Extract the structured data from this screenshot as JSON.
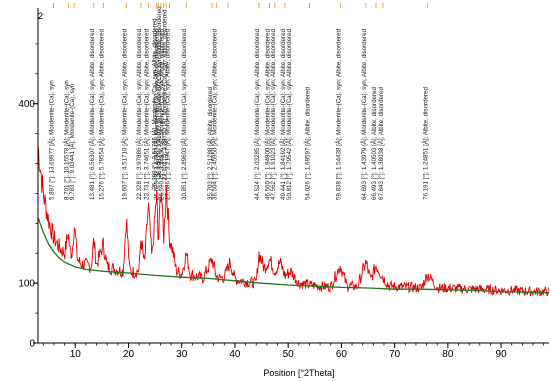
{
  "panel_number": "2",
  "chart_data": {
    "type": "line",
    "title": "",
    "xlabel": "Position [°2Theta]",
    "ylabel": "",
    "xlim": [
      3,
      99
    ],
    "ylim": [
      0,
      560
    ],
    "x_ticks": [
      10,
      20,
      30,
      40,
      50,
      60,
      70,
      80,
      90
    ],
    "y_ticks": [
      0,
      100,
      400
    ],
    "grid": false,
    "legend": "none",
    "colors": {
      "observed": "#e00000",
      "background": "#1f7a1f",
      "marker": "#f29b30",
      "axis": "#000000"
    },
    "series": [
      {
        "role": "observed",
        "x": [
          3,
          4,
          5,
          6,
          7,
          8,
          8.7,
          9.0,
          9.4,
          9.8,
          10.4,
          11,
          12,
          13,
          13.48,
          14,
          15.28,
          16,
          17,
          18,
          19,
          19.6,
          20.2,
          21,
          22,
          22.33,
          23.0,
          23.73,
          24.4,
          25.3,
          25.6,
          26.1,
          26.6,
          27.1,
          27.7,
          28.3,
          29,
          30,
          30.85,
          31.6,
          32.5,
          34,
          35.7,
          36.5,
          37,
          38,
          39.1,
          40,
          42,
          44,
          44.5,
          45.5,
          46.5,
          47.5,
          48.5,
          49.4,
          50.5,
          52,
          54,
          56,
          58,
          59.8,
          61,
          63,
          64.6,
          65.5,
          66.5,
          67.8,
          69,
          71,
          73,
          75,
          76.2,
          78,
          80,
          82,
          84,
          86,
          88,
          90,
          92,
          94,
          96,
          98,
          99
        ],
        "y": [
          330,
          250,
          205,
          175,
          160,
          150,
          185,
          155,
          150,
          200,
          140,
          133,
          130,
          128,
          172,
          130,
          165,
          128,
          125,
          122,
          120,
          210,
          122,
          118,
          122,
          175,
          130,
          230,
          140,
          250,
          160,
          270,
          170,
          265,
          175,
          155,
          120,
          115,
          150,
          115,
          112,
          108,
          140,
          112,
          108,
          110,
          135,
          107,
          103,
          100,
          150,
          125,
          140,
          120,
          135,
          112,
          120,
          100,
          97,
          95,
          94,
          130,
          96,
          94,
          135,
          105,
          130,
          110,
          95,
          94,
          93,
          92,
          115,
          92,
          92,
          91,
          90,
          90,
          89,
          88,
          88,
          87,
          86,
          86,
          86
        ]
      },
      {
        "role": "background",
        "x": [
          3,
          4,
          5,
          6,
          7,
          8,
          10,
          12,
          15,
          20,
          25,
          30,
          35,
          40,
          45,
          50,
          55,
          60,
          65,
          70,
          75,
          80,
          85,
          90,
          95,
          99
        ],
        "y": [
          210,
          185,
          165,
          152,
          142,
          135,
          127,
          123,
          120,
          117,
          113,
          110,
          108,
          104,
          100,
          97,
          95,
          93,
          92,
          90,
          90,
          89,
          88,
          86,
          85,
          84
        ]
      }
    ],
    "peak_markers": [
      5.9,
      8.7,
      9.8,
      13.48,
      15.28,
      19.6,
      22.33,
      23.73,
      25.3,
      25.6,
      26.1,
      26.6,
      27.1,
      27.7,
      30.85,
      35.7,
      36.5,
      38.7,
      44.5,
      46.5,
      47.5,
      49.4,
      54.0,
      59.8,
      64.6,
      66.5,
      67.8,
      76.2
    ],
    "annotations": [
      {
        "x": 5.9,
        "text": "5.897 [°]; 13.69977 [Å]; Mordenite-(Ca), syn"
      },
      {
        "x": 8.7,
        "text": "8.701 [°]; 10.15578 [Å]; Mordenite-(Ca), syn"
      },
      {
        "x": 9.8,
        "text": "9.783 [°]; 9.03441 [Å]; Mordenite-(Ca), syn"
      },
      {
        "x": 13.48,
        "text": "13.481 [°]; 6.56307 [Å]; Mordenite-(Ca), syn; Albite, disordered"
      },
      {
        "x": 15.28,
        "text": "15.276 [°]; 5.79554 [Å]; Mordenite-(Ca), syn; Albite, disordered"
      },
      {
        "x": 19.6,
        "text": "19.607 [°]; 4.51710 [Å]; Mordenite-(Ca), syn; Albite, disordered"
      },
      {
        "x": 22.33,
        "text": "22.328 [°]; 3.97886 [Å]; Mordenite-(Ca), syn; Albite, disordered"
      },
      {
        "x": 23.73,
        "text": "23.731 [°]; 3.74651 [Å]; Mordenite-(Ca), syn; Albite, disordered"
      },
      {
        "x": 25.3,
        "text": "25.299 [°]; 3.51765 [Å]; Mordenite-(Ca), syn; Albite, disordered"
      },
      {
        "x": 25.6,
        "text": "25.623 [°]; 3.47383 [Å]; Mordenite-(Ca), syn; Albite, disordered"
      },
      {
        "x": 26.1,
        "text": "26.108 [°]; 3.41037 [Å]; Mordenite-(Ca), syn; Albite, disordered"
      },
      {
        "x": 26.6,
        "text": "26.590 [°]; 3.34956 [Å]; Mordenite-(Ca), syn; Albite, disordered"
      },
      {
        "x": 27.1,
        "text": "27.102 [°]; 3.28750 [Å]; Mordenite-(Ca), syn; Albite, disordered"
      },
      {
        "x": 27.7,
        "text": "27.686 [°]; 3.21947 [Å]; Mordenite-(Ca), syn; Albite, disordered"
      },
      {
        "x": 30.85,
        "text": "30.851 [°]; 2.89603 [Å]; Mordenite-(Ca), syn; Albite, disordered"
      },
      {
        "x": 35.7,
        "text": "35.703 [°]; 2.51288 [Å]; Albite, disordered"
      },
      {
        "x": 36.5,
        "text": "36.504 [°]; 2.45950 [Å]; Mordenite-(Ca), syn; Albite, disordered"
      },
      {
        "x": 44.5,
        "text": "44.524 [°]; 2.03285 [Å]; Mordenite-(Ca), syn; Albite, disordered"
      },
      {
        "x": 46.5,
        "text": "46.560 [°]; 1.94900 [Å]; Mordenite-(Ca), syn; Albite, disordered"
      },
      {
        "x": 47.5,
        "text": "47.562 [°]; 1.91023 [Å]; Mordenite-(Ca), syn; Albite, disordered"
      },
      {
        "x": 49.4,
        "text": "49.441 [°]; 1.84192 [Å]; Mordenite-(Ca), syn; Albite, disordered"
      },
      {
        "x": 50.5,
        "text": "50.812 [°]; 1.79542 [Å]; Mordenite-(Ca), syn; Albite, disordered"
      },
      {
        "x": 54.0,
        "text": "54.026 [°]; 1.69597 [Å]; Albite, disordered"
      },
      {
        "x": 59.8,
        "text": "59.838 [°]; 1.54438 [Å]; Mordenite-(Ca), syn; Albite, disordered"
      },
      {
        "x": 64.6,
        "text": "64.693 [°]; 1.43979 [Å]; Mordenite-(Ca), syn; Albite, disordered"
      },
      {
        "x": 66.5,
        "text": "66.493 [°]; 1.40503 [Å]; Albite, disordered"
      },
      {
        "x": 67.8,
        "text": "67.843 [°]; 1.38038 [Å]; Albite, disordered"
      },
      {
        "x": 76.2,
        "text": "76.191 [°]; 1.24851 [Å]; Albite, disordered"
      }
    ]
  }
}
